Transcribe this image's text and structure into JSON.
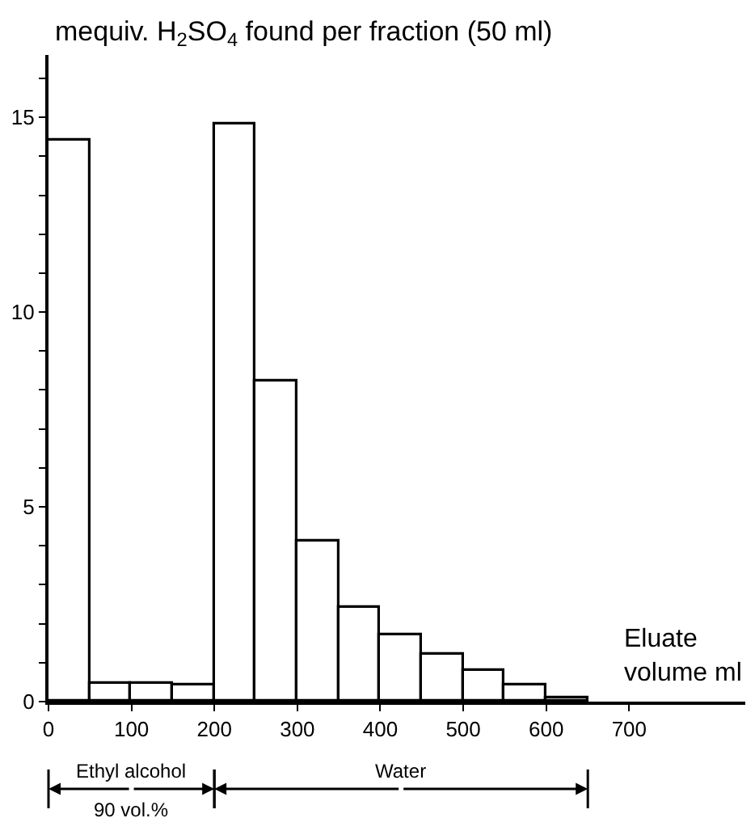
{
  "chart_data": {
    "type": "histogram",
    "ylabel": "mequiv. H$_{2}$SO$_{4}$ found per fraction (50 ml)",
    "xlabel": "Eluate\nvolume ml",
    "bins": [
      0,
      50,
      100,
      150,
      200,
      250,
      300,
      350,
      400,
      450,
      500,
      550,
      600,
      650
    ],
    "values": [
      14.4,
      0.46,
      0.46,
      0.4,
      14.8,
      8.2,
      4.1,
      2.4,
      1.7,
      1.2,
      0.8,
      0.4,
      0.1
    ],
    "color": "#ffffff",
    "xlim": [
      0,
      840
    ],
    "xticks": [
      0,
      100,
      200,
      300,
      400,
      500,
      600,
      700
    ],
    "ylim": [
      0,
      16.6
    ],
    "yticks": [
      0,
      {
        "value": 1,
        "label": null
      },
      {
        "value": 2,
        "label": null
      },
      {
        "value": 3,
        "label": null
      },
      {
        "value": 4,
        "label": null
      },
      5,
      {
        "value": 6,
        "label": null
      },
      {
        "value": 7,
        "label": null
      },
      {
        "value": 8,
        "label": null
      },
      {
        "value": 9,
        "label": null
      },
      10,
      {
        "value": 11,
        "label": null
      },
      {
        "value": 12,
        "label": null
      },
      {
        "value": 13,
        "label": null
      },
      {
        "value": 14,
        "label": null
      },
      15,
      {
        "value": 16,
        "label": null
      }
    ],
    "annotations": [
      "Ethyl alcohol\n90 vol.%",
      "Water"
    ],
    "grid": false
  }
}
